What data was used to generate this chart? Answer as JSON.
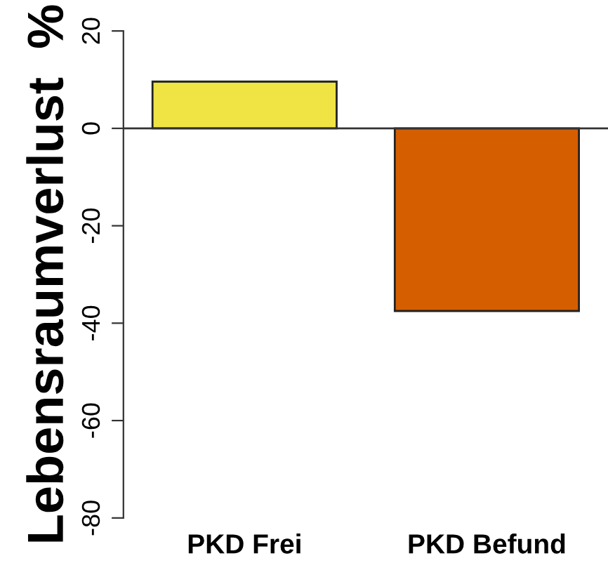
{
  "chart_data": {
    "type": "bar",
    "ylabel": "Lebensraumverlust  %",
    "categories": [
      "PKD Frei",
      "PKD Befund"
    ],
    "values": [
      9.6,
      -37.5
    ],
    "colors": [
      "#efe443",
      "#d55e00"
    ],
    "ylim": [
      -80,
      20
    ],
    "yticks": [
      -80,
      -60,
      -40,
      -20,
      0,
      20
    ],
    "ref_lines": [
      {
        "axis": "y",
        "value": 0
      }
    ],
    "grid": false
  }
}
